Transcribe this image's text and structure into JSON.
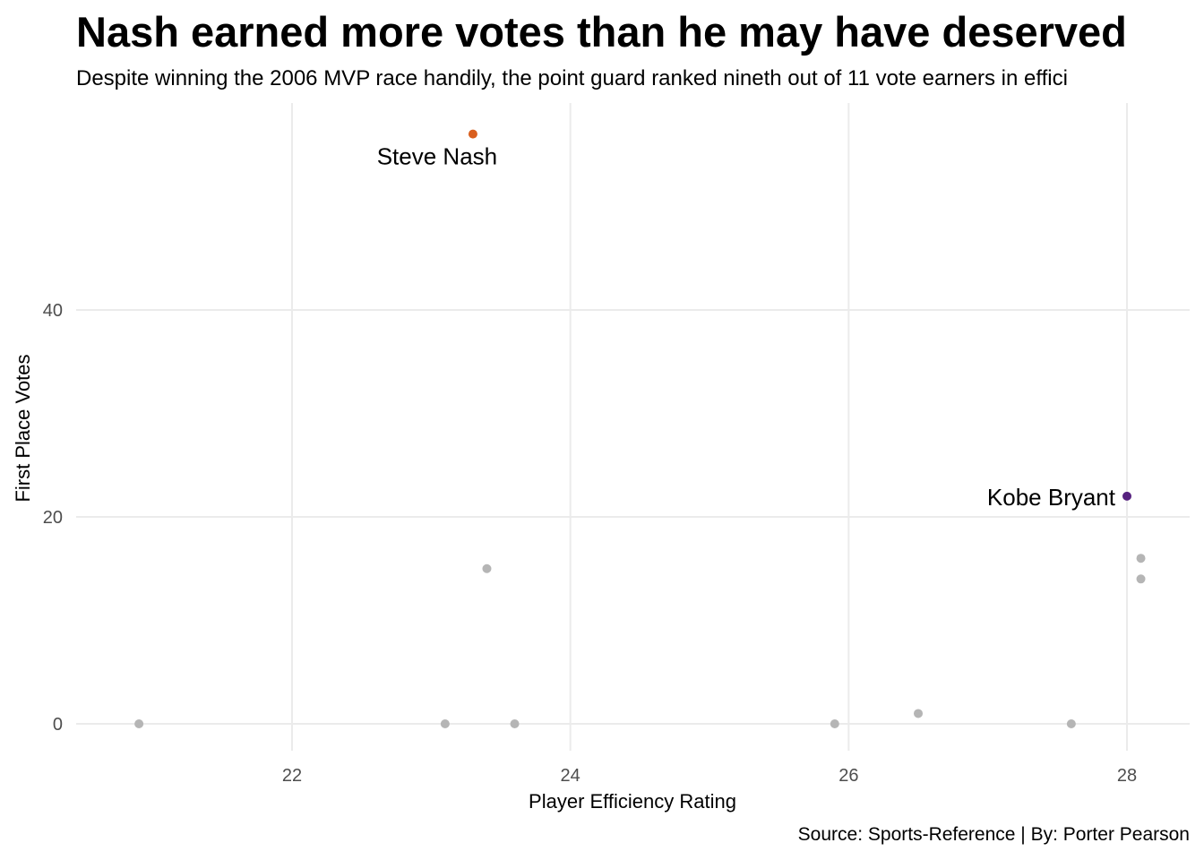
{
  "chart_data": {
    "type": "scatter",
    "title": "Nash earned more votes than he may have deserved",
    "subtitle": "Despite winning the 2006 MVP race handily, the point guard ranked nineth out of 11 vote earners in effici",
    "caption": "Source: Sports-Reference | By: Porter Pearson",
    "xlabel": "Player Efficiency Rating",
    "ylabel": "First Place Votes",
    "xlim": [
      20.6,
      28.45
    ],
    "ylim": [
      -2.5,
      60
    ],
    "x_ticks": [
      22,
      24,
      26,
      28
    ],
    "y_ticks": [
      0,
      20,
      40
    ],
    "grid": true,
    "colors": {
      "highlight_nash": "#d95f1e",
      "highlight_kobe": "#56217f",
      "default": "#b5b5b5",
      "grid": "#ebebeb"
    },
    "points": [
      {
        "x": 23.3,
        "y": 57,
        "label": "Steve Nash",
        "color": "#d95f1e"
      },
      {
        "x": 28.0,
        "y": 22,
        "label": "Kobe Bryant",
        "color": "#56217f"
      },
      {
        "x": 23.4,
        "y": 15,
        "label": "",
        "color": "#b5b5b5"
      },
      {
        "x": 28.1,
        "y": 16,
        "label": "",
        "color": "#b5b5b5"
      },
      {
        "x": 28.1,
        "y": 14,
        "label": "",
        "color": "#b5b5b5"
      },
      {
        "x": 20.9,
        "y": 0,
        "label": "",
        "color": "#b5b5b5"
      },
      {
        "x": 23.1,
        "y": 0,
        "label": "",
        "color": "#b5b5b5"
      },
      {
        "x": 23.6,
        "y": 0,
        "label": "",
        "color": "#b5b5b5"
      },
      {
        "x": 25.9,
        "y": 0,
        "label": "",
        "color": "#b5b5b5"
      },
      {
        "x": 26.5,
        "y": 1,
        "label": "",
        "color": "#b5b5b5"
      },
      {
        "x": 27.6,
        "y": 0,
        "label": "",
        "color": "#b5b5b5"
      }
    ]
  }
}
